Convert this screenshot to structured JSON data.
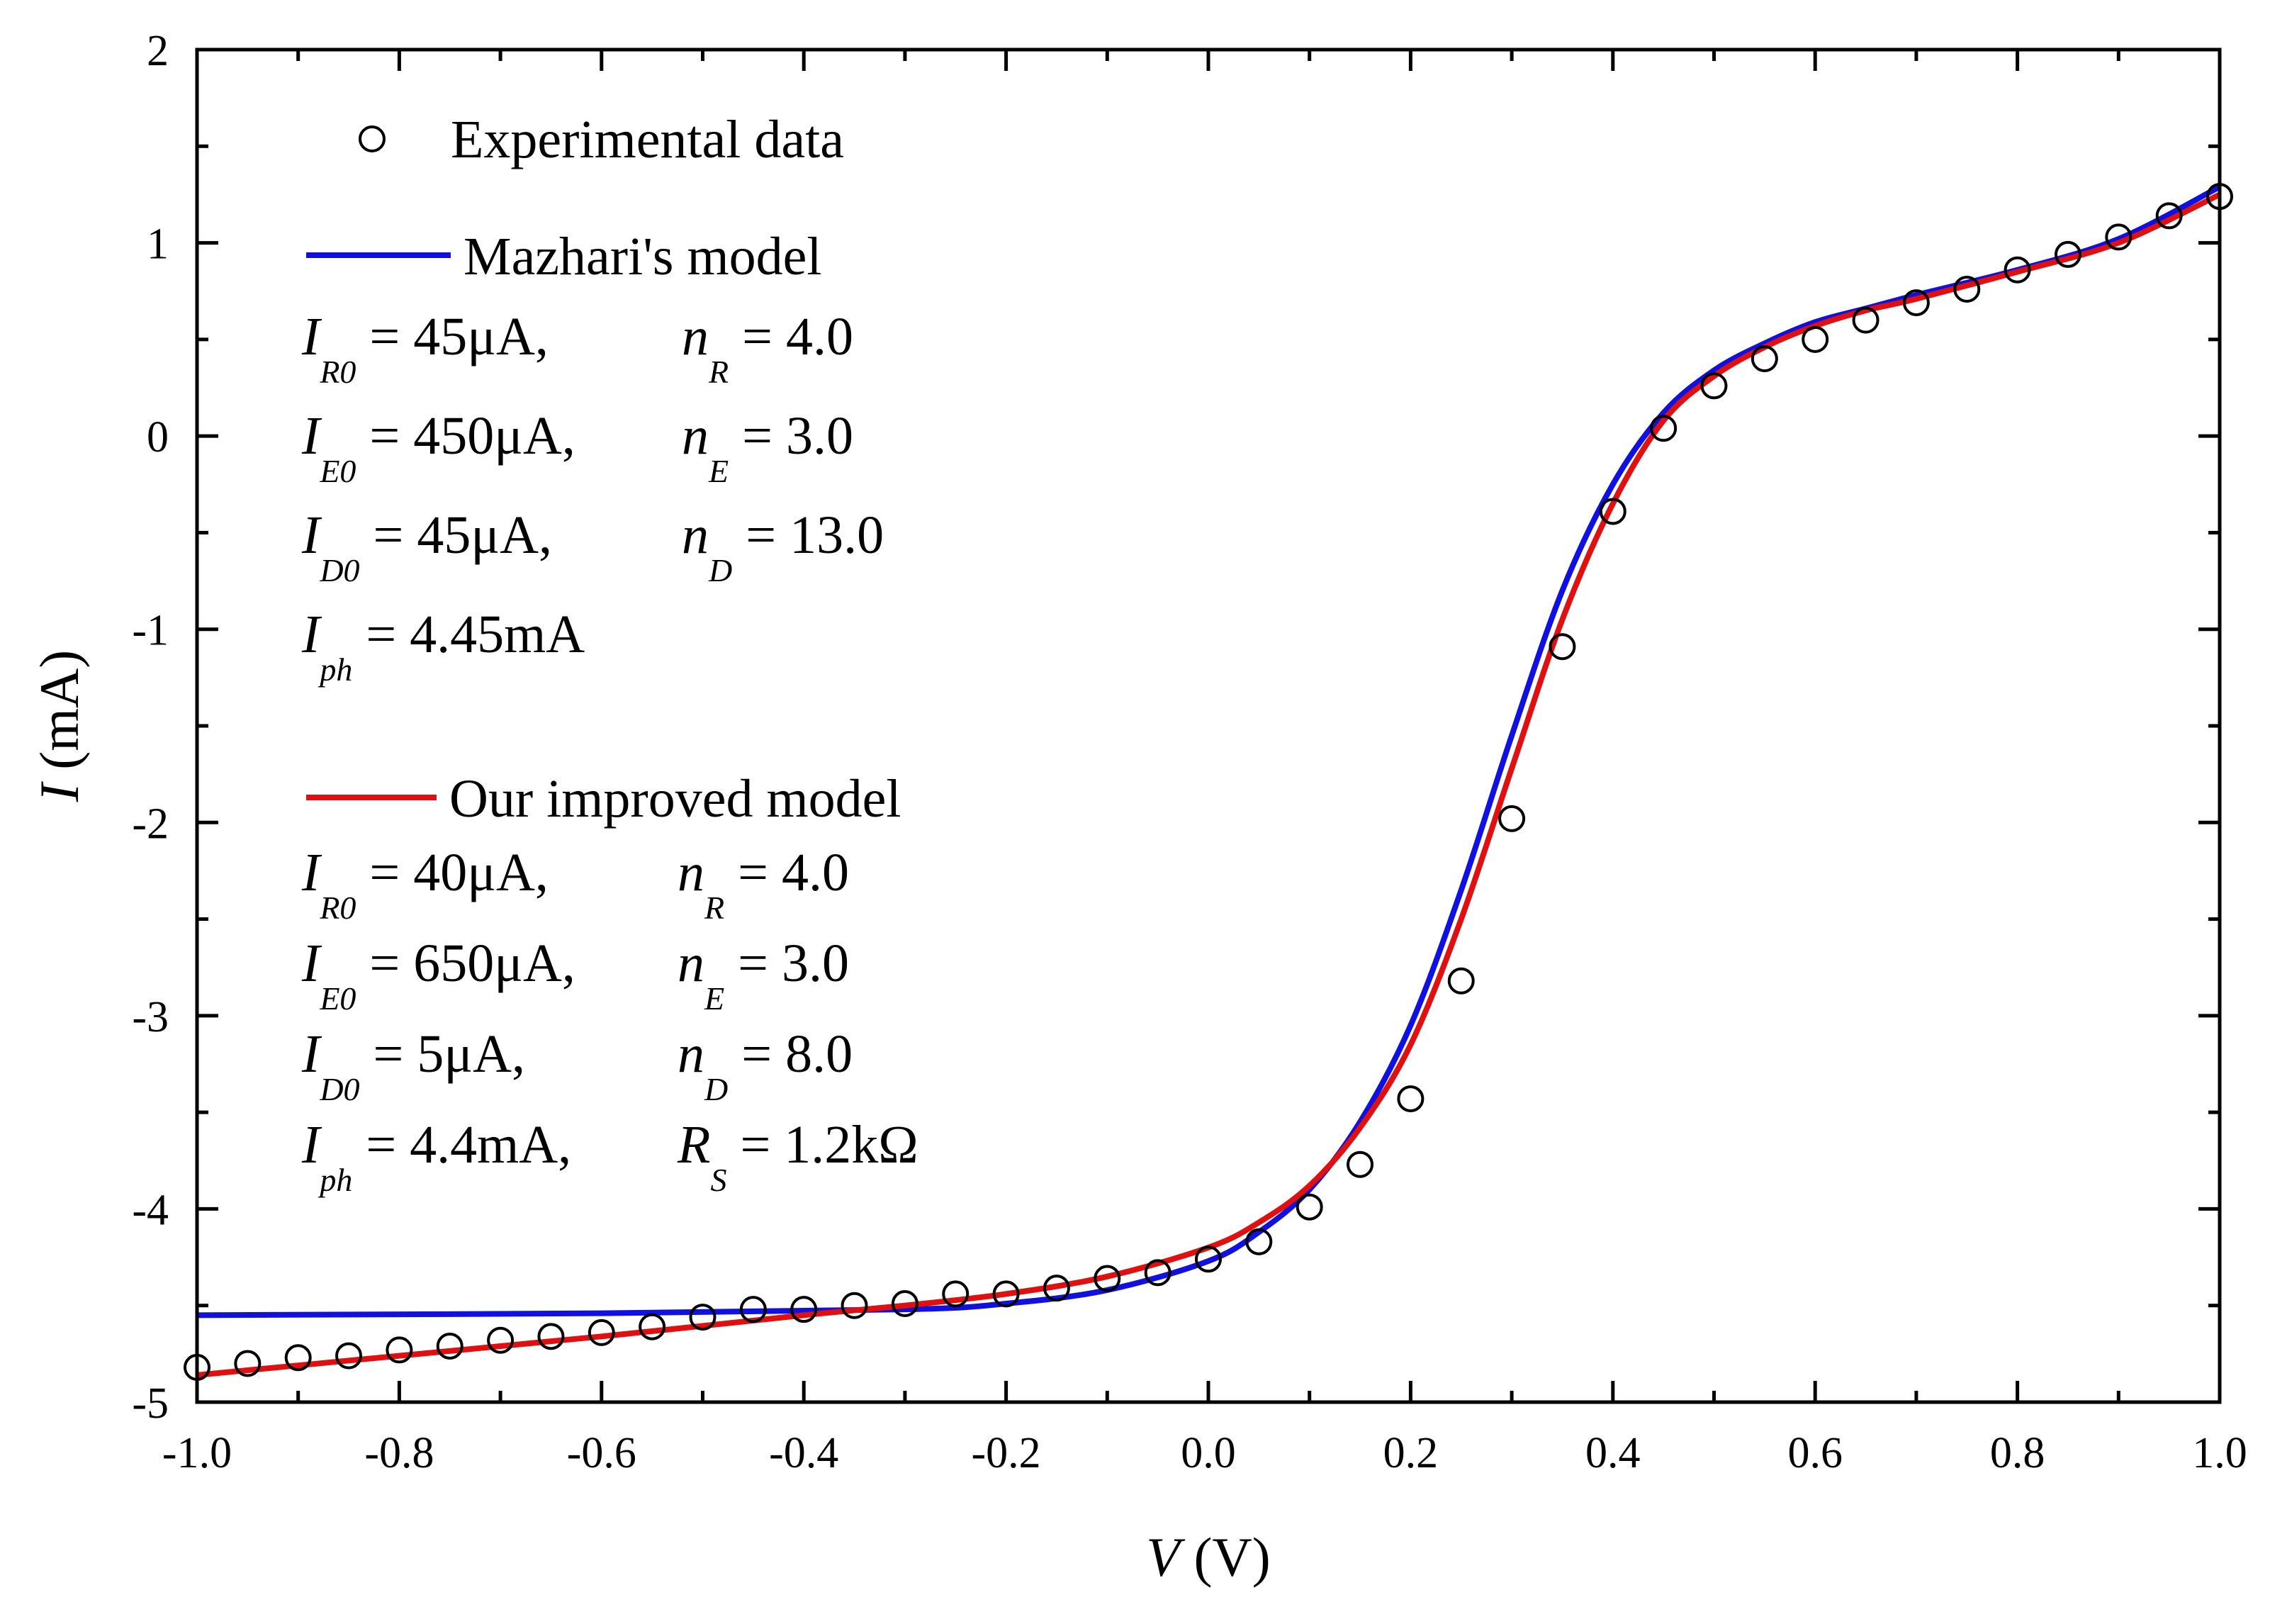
{
  "chart_data": {
    "type": "scatter",
    "title": "",
    "xlabel": {
      "symbol": "V",
      "unit": " (V)"
    },
    "ylabel": {
      "symbol": "I",
      "unit": " (mA)"
    },
    "xlim": [
      -1.0,
      1.0
    ],
    "ylim": [
      -5,
      2
    ],
    "x_ticks": [
      -1.0,
      -0.8,
      -0.6,
      -0.4,
      -0.2,
      0.0,
      0.2,
      0.4,
      0.6,
      0.8,
      1.0
    ],
    "x_tick_labels": [
      "-1.0",
      "-0.8",
      "-0.6",
      "-0.4",
      "-0.2",
      "0.0",
      "0.2",
      "0.4",
      "0.6",
      "0.8",
      "1.0"
    ],
    "y_ticks": [
      -5,
      -4,
      -3,
      -2,
      -1,
      0,
      1,
      2
    ],
    "y_tick_labels": [
      "-5",
      "-4",
      "-3",
      "-2",
      "-1",
      "0",
      "1",
      "2"
    ],
    "grid": false,
    "series": [
      {
        "name": "Experimental data",
        "kind": "markers",
        "marker": "open-circle",
        "color": "#000000",
        "x": [
          -1.0,
          -0.95,
          -0.9,
          -0.85,
          -0.8,
          -0.75,
          -0.7,
          -0.65,
          -0.6,
          -0.55,
          -0.5,
          -0.45,
          -0.4,
          -0.35,
          -0.3,
          -0.25,
          -0.2,
          -0.15,
          -0.1,
          -0.05,
          0.0,
          0.05,
          0.1,
          0.15,
          0.2,
          0.25,
          0.3,
          0.35,
          0.4,
          0.45,
          0.5,
          0.55,
          0.6,
          0.65,
          0.7,
          0.75,
          0.8,
          0.85,
          0.9,
          0.95,
          1.0
        ],
        "y": [
          -4.82,
          -4.8,
          -4.77,
          -4.76,
          -4.73,
          -4.71,
          -4.68,
          -4.66,
          -4.64,
          -4.61,
          -4.56,
          -4.52,
          -4.52,
          -4.5,
          -4.49,
          -4.44,
          -4.44,
          -4.41,
          -4.36,
          -4.33,
          -4.26,
          -4.17,
          -3.99,
          -3.77,
          -3.43,
          -2.82,
          -1.98,
          -1.09,
          -0.39,
          0.04,
          0.26,
          0.4,
          0.5,
          0.6,
          0.69,
          0.76,
          0.86,
          0.94,
          1.03,
          1.14,
          1.24
        ]
      },
      {
        "name": "Mazhari's model",
        "kind": "line",
        "color": "#1010e0",
        "x": [
          -1.0,
          -0.6,
          -0.3,
          -0.2,
          -0.1,
          0.0,
          0.05,
          0.1,
          0.15,
          0.2,
          0.25,
          0.3,
          0.35,
          0.4,
          0.45,
          0.5,
          0.55,
          0.6,
          0.65,
          0.7,
          0.8,
          0.9,
          1.0
        ],
        "y": [
          -4.55,
          -4.54,
          -4.52,
          -4.49,
          -4.42,
          -4.27,
          -4.12,
          -3.9,
          -3.55,
          -3.05,
          -2.35,
          -1.55,
          -0.8,
          -0.25,
          0.12,
          0.34,
          0.48,
          0.59,
          0.66,
          0.73,
          0.86,
          1.02,
          1.29
        ]
      },
      {
        "name": "Our improved model",
        "kind": "line",
        "color": "#e01010",
        "x": [
          -1.0,
          -0.8,
          -0.6,
          -0.4,
          -0.3,
          -0.2,
          -0.1,
          0.0,
          0.05,
          0.1,
          0.15,
          0.2,
          0.25,
          0.3,
          0.35,
          0.4,
          0.45,
          0.5,
          0.55,
          0.6,
          0.65,
          0.7,
          0.8,
          0.9,
          1.0
        ],
        "y": [
          -4.86,
          -4.76,
          -4.66,
          -4.55,
          -4.5,
          -4.44,
          -4.35,
          -4.2,
          -4.07,
          -3.88,
          -3.58,
          -3.15,
          -2.5,
          -1.72,
          -0.95,
          -0.35,
          0.08,
          0.31,
          0.46,
          0.57,
          0.65,
          0.71,
          0.85,
          1.0,
          1.25
        ]
      }
    ],
    "legend": {
      "position": "top-left",
      "entries": [
        "Experimental data",
        "Mazhari's model",
        "Our improved model"
      ]
    },
    "annotations": {
      "mazhari_params": [
        [
          {
            "main": "I",
            "sub": "R0",
            "rest": " = 45μA,"
          },
          {
            "main": "n",
            "sub": "R",
            "rest": " = 4.0"
          }
        ],
        [
          {
            "main": "I",
            "sub": "E0",
            "rest": " = 450μA,"
          },
          {
            "main": "n",
            "sub": "E",
            "rest": " = 3.0"
          }
        ],
        [
          {
            "main": "I",
            "sub": "D0",
            "rest": " = 45μA,"
          },
          {
            "main": "n",
            "sub": "D",
            "rest": " = 13.0"
          }
        ],
        [
          {
            "main": "I",
            "sub": "ph",
            "rest": " = 4.45mA"
          }
        ]
      ],
      "improved_params": [
        [
          {
            "main": "I",
            "sub": "R0",
            "rest": " = 40μA,"
          },
          {
            "main": "n",
            "sub": "R",
            "rest": " = 4.0"
          }
        ],
        [
          {
            "main": "I",
            "sub": "E0",
            "rest": " = 650μA,"
          },
          {
            "main": "n",
            "sub": "E",
            "rest": " = 3.0"
          }
        ],
        [
          {
            "main": "I",
            "sub": "D0",
            "rest": " = 5μA,"
          },
          {
            "main": "n",
            "sub": "D",
            "rest": " = 8.0"
          }
        ],
        [
          {
            "main": "I",
            "sub": "ph",
            "rest": " = 4.4mA,"
          },
          {
            "main": "R",
            "sub": "S",
            "rest": " = 1.2kΩ"
          }
        ]
      ]
    }
  }
}
